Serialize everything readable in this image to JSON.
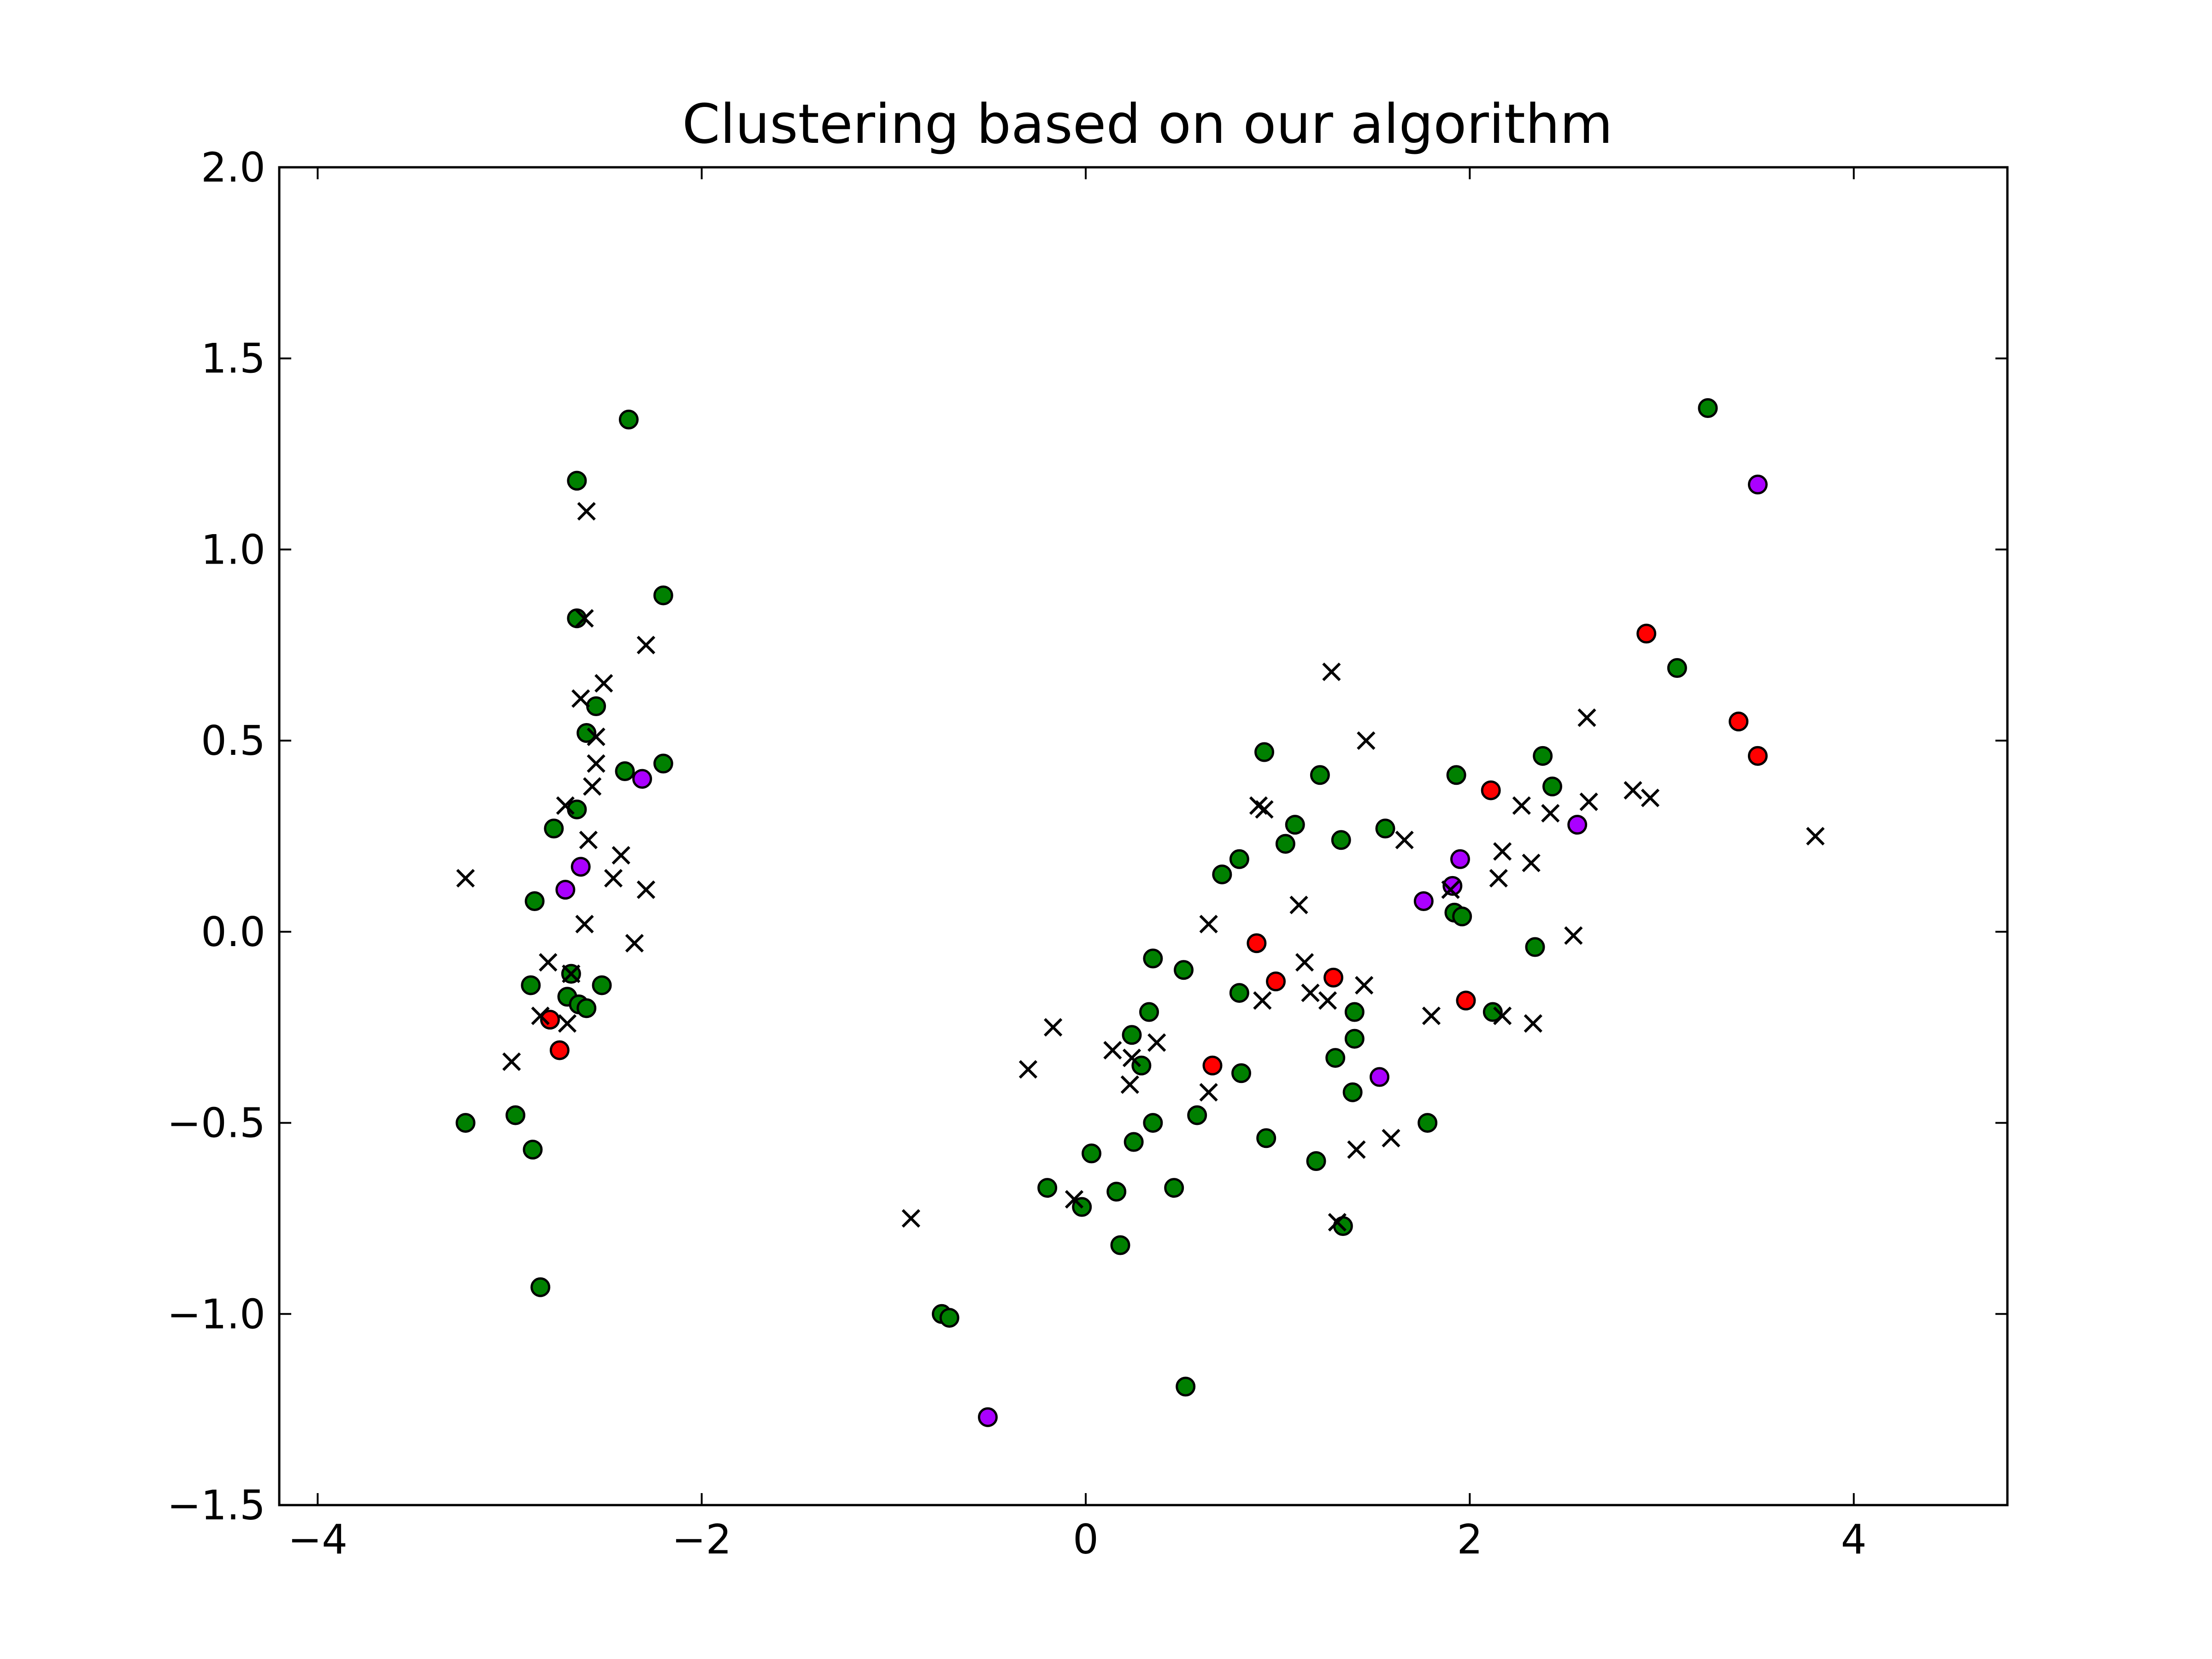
{
  "chart_data": {
    "type": "scatter",
    "title": "Clustering based on our algorithm",
    "xlabel": "",
    "ylabel": "",
    "xlim": [
      -4.2,
      4.8
    ],
    "ylim": [
      -1.5,
      2.0
    ],
    "xticks": [
      -4,
      -2,
      0,
      2,
      4
    ],
    "xtick_labels": [
      "−4",
      "−2",
      "0",
      "2",
      "4"
    ],
    "yticks": [
      -1.5,
      -1.0,
      -0.5,
      0.0,
      0.5,
      1.0,
      1.5,
      2.0
    ],
    "ytick_labels": [
      "−1.5",
      "−1.0",
      "−0.5",
      "0.0",
      "0.5",
      "1.0",
      "1.5",
      "2.0"
    ],
    "grid": false,
    "colors": {
      "green": "#008000",
      "red": "#ff0000",
      "purple": "#aa00ff",
      "cross": "#000000"
    },
    "series": [
      {
        "marker": "circle",
        "color": "#008000",
        "points": [
          [
            -2.38,
            1.34
          ],
          [
            -2.65,
            1.18
          ],
          [
            -2.2,
            0.88
          ],
          [
            -2.65,
            0.82
          ],
          [
            -2.55,
            0.59
          ],
          [
            -2.6,
            0.52
          ],
          [
            -2.4,
            0.42
          ],
          [
            -2.2,
            0.44
          ],
          [
            -2.65,
            0.32
          ],
          [
            -2.77,
            0.27
          ],
          [
            -2.87,
            0.08
          ],
          [
            -2.68,
            -0.11
          ],
          [
            -2.89,
            -0.14
          ],
          [
            -2.52,
            -0.14
          ],
          [
            -2.7,
            -0.17
          ],
          [
            -2.64,
            -0.19
          ],
          [
            -2.6,
            -0.2
          ],
          [
            -3.23,
            -0.5
          ],
          [
            -2.97,
            -0.48
          ],
          [
            -2.88,
            -0.57
          ],
          [
            -2.84,
            -0.93
          ],
          [
            -0.75,
            -1.0
          ],
          [
            -0.71,
            -1.01
          ],
          [
            -0.2,
            -0.67
          ],
          [
            -0.02,
            -0.72
          ],
          [
            0.03,
            -0.58
          ],
          [
            0.16,
            -0.68
          ],
          [
            0.18,
            -0.82
          ],
          [
            0.25,
            -0.55
          ],
          [
            0.24,
            -0.27
          ],
          [
            0.29,
            -0.35
          ],
          [
            0.33,
            -0.21
          ],
          [
            0.35,
            -0.07
          ],
          [
            0.35,
            -0.5
          ],
          [
            0.46,
            -0.67
          ],
          [
            0.51,
            -0.1
          ],
          [
            0.52,
            -1.19
          ],
          [
            0.58,
            -0.48
          ],
          [
            0.71,
            0.15
          ],
          [
            0.8,
            0.19
          ],
          [
            0.8,
            -0.16
          ],
          [
            0.81,
            -0.37
          ],
          [
            0.93,
            0.47
          ],
          [
            0.94,
            -0.54
          ],
          [
            1.04,
            0.23
          ],
          [
            1.09,
            0.28
          ],
          [
            1.2,
            -0.6
          ],
          [
            1.22,
            0.41
          ],
          [
            1.3,
            -0.33
          ],
          [
            1.33,
            0.24
          ],
          [
            1.34,
            -0.77
          ],
          [
            1.39,
            -0.42
          ],
          [
            1.4,
            -0.21
          ],
          [
            1.4,
            -0.28
          ],
          [
            1.56,
            0.27
          ],
          [
            1.78,
            -0.5
          ],
          [
            1.92,
            0.05
          ],
          [
            1.93,
            0.41
          ],
          [
            1.96,
            0.04
          ],
          [
            2.12,
            -0.21
          ],
          [
            2.34,
            -0.04
          ],
          [
            2.38,
            0.46
          ],
          [
            2.43,
            0.38
          ],
          [
            3.08,
            0.69
          ],
          [
            3.24,
            1.37
          ]
        ]
      },
      {
        "marker": "circle",
        "color": "#ff0000",
        "points": [
          [
            -2.79,
            -0.23
          ],
          [
            -2.74,
            -0.31
          ],
          [
            0.66,
            -0.35
          ],
          [
            0.89,
            -0.03
          ],
          [
            0.99,
            -0.13
          ],
          [
            1.29,
            -0.12
          ],
          [
            1.98,
            -0.18
          ],
          [
            2.11,
            0.37
          ],
          [
            2.92,
            0.78
          ],
          [
            3.4,
            0.55
          ],
          [
            3.5,
            0.46
          ]
        ]
      },
      {
        "marker": "circle",
        "color": "#aa00ff",
        "points": [
          [
            -2.31,
            0.4
          ],
          [
            -2.63,
            0.17
          ],
          [
            -2.71,
            0.11
          ],
          [
            -0.51,
            -1.27
          ],
          [
            1.53,
            -0.38
          ],
          [
            1.76,
            0.08
          ],
          [
            1.91,
            0.12
          ],
          [
            1.95,
            0.19
          ],
          [
            2.56,
            0.28
          ],
          [
            3.5,
            1.17
          ]
        ]
      },
      {
        "marker": "x",
        "color": "#000000",
        "points": [
          [
            -2.6,
            1.1
          ],
          [
            -2.61,
            0.82
          ],
          [
            -2.29,
            0.75
          ],
          [
            -2.51,
            0.65
          ],
          [
            -2.63,
            0.61
          ],
          [
            -2.55,
            0.51
          ],
          [
            -2.55,
            0.44
          ],
          [
            -2.57,
            0.38
          ],
          [
            -2.71,
            0.33
          ],
          [
            -2.59,
            0.24
          ],
          [
            -2.42,
            0.2
          ],
          [
            -2.46,
            0.14
          ],
          [
            -2.29,
            0.11
          ],
          [
            -2.61,
            0.02
          ],
          [
            -2.35,
            -0.03
          ],
          [
            -3.23,
            0.14
          ],
          [
            -2.8,
            -0.08
          ],
          [
            -2.68,
            -0.11
          ],
          [
            -2.84,
            -0.22
          ],
          [
            -2.7,
            -0.24
          ],
          [
            -2.99,
            -0.34
          ],
          [
            -0.91,
            -0.75
          ],
          [
            -0.3,
            -0.36
          ],
          [
            -0.17,
            -0.25
          ],
          [
            -0.06,
            -0.7
          ],
          [
            0.14,
            -0.31
          ],
          [
            0.24,
            -0.33
          ],
          [
            0.23,
            -0.4
          ],
          [
            0.37,
            -0.29
          ],
          [
            0.64,
            0.02
          ],
          [
            0.64,
            -0.42
          ],
          [
            0.9,
            0.33
          ],
          [
            0.93,
            0.32
          ],
          [
            0.92,
            -0.18
          ],
          [
            1.11,
            0.07
          ],
          [
            1.14,
            -0.08
          ],
          [
            1.17,
            -0.16
          ],
          [
            1.26,
            -0.18
          ],
          [
            1.28,
            0.68
          ],
          [
            1.31,
            -0.76
          ],
          [
            1.41,
            -0.57
          ],
          [
            1.45,
            -0.14
          ],
          [
            1.46,
            0.5
          ],
          [
            1.59,
            -0.54
          ],
          [
            1.66,
            0.24
          ],
          [
            1.8,
            -0.22
          ],
          [
            1.9,
            0.11
          ],
          [
            2.15,
            0.14
          ],
          [
            2.17,
            0.21
          ],
          [
            2.17,
            -0.22
          ],
          [
            2.27,
            0.33
          ],
          [
            2.32,
            0.18
          ],
          [
            2.33,
            -0.24
          ],
          [
            2.42,
            0.31
          ],
          [
            2.54,
            -0.01
          ],
          [
            2.61,
            0.56
          ],
          [
            2.62,
            0.34
          ],
          [
            2.85,
            0.37
          ],
          [
            2.94,
            0.35
          ],
          [
            3.8,
            0.25
          ]
        ]
      }
    ]
  }
}
